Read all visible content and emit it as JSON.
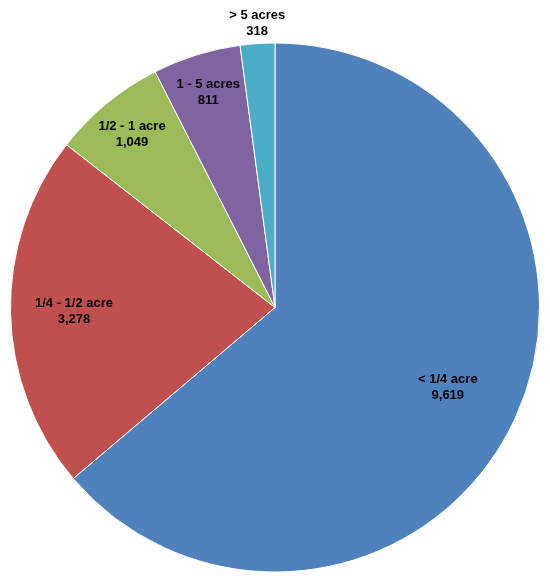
{
  "chart_data": {
    "type": "pie",
    "categories": [
      "< 1/4 acre",
      "1/4 - 1/2 acre",
      "1/2 - 1 acre",
      "1 - 5 acres",
      "> 5 acres"
    ],
    "values": [
      9619,
      3278,
      1049,
      811,
      318
    ],
    "value_labels": [
      "9,619",
      "3,278",
      "1,049",
      "811",
      "318"
    ],
    "colors": [
      "#4f81bd",
      "#c0504d",
      "#9bbb59",
      "#8064a2",
      "#4bacc6"
    ],
    "data_labels": true
  }
}
